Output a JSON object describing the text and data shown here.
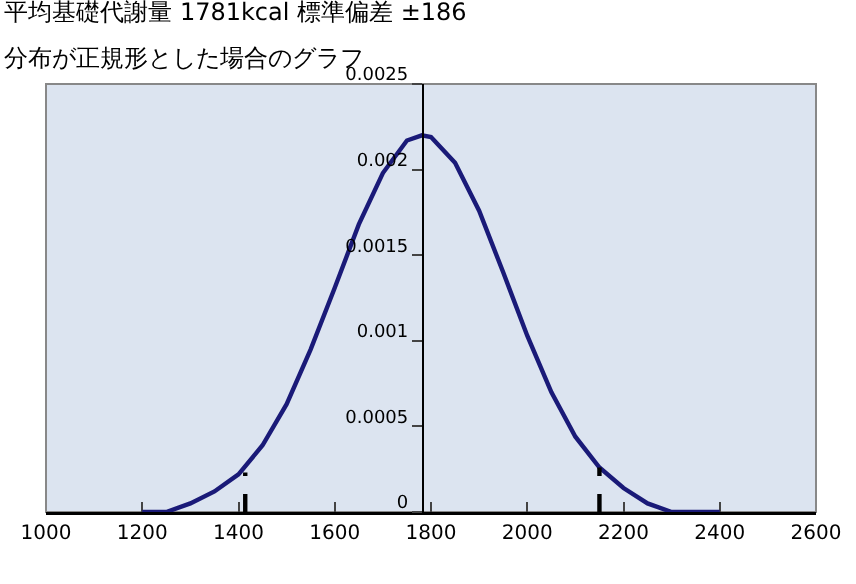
{
  "chart_data": {
    "type": "line",
    "title": "平均基礎代謝量 1781kcal 標準偏差 ±186",
    "subtitle": "分布が正規形とした場合のグラフ",
    "series": [
      {
        "color": "#1a1a78",
        "line_style": "solid",
        "x": [
          1200,
          1250,
          1300,
          1350,
          1400,
          1450,
          1500,
          1550,
          1600,
          1650,
          1700,
          1750,
          1781,
          1800,
          1850,
          1900,
          1950,
          2000,
          2050,
          2100,
          2150,
          2200,
          2250,
          2300,
          2350,
          2400
        ],
        "values": [
          0,
          0,
          5e-05,
          0.00012,
          0.00022,
          0.00039,
          0.00063,
          0.00095,
          0.00131,
          0.00168,
          0.00198,
          0.00217,
          0.0022,
          0.00219,
          0.00204,
          0.00176,
          0.0014,
          0.00103,
          0.0007,
          0.00044,
          0.00026,
          0.00014,
          5e-05,
          0,
          0,
          0
        ]
      },
      {
        "color": "#000000",
        "line_style": "dashed",
        "x": [
          1414,
          1414
        ],
        "values": [
          0,
          0.00023
        ]
      },
      {
        "color": "#000000",
        "line_style": "dashed",
        "x": [
          2150,
          2150
        ],
        "values": [
          0,
          0.00026
        ]
      }
    ],
    "xlim": [
      1000,
      2600
    ],
    "xticks": [
      1000,
      1200,
      1400,
      1600,
      1800,
      2000,
      2200,
      2400,
      2600
    ],
    "ylim": [
      0,
      0.0025
    ],
    "yticks": [
      0,
      0.0005,
      0.001,
      0.0015,
      0.002,
      0.0025
    ],
    "marker": "none",
    "grid": false
  }
}
